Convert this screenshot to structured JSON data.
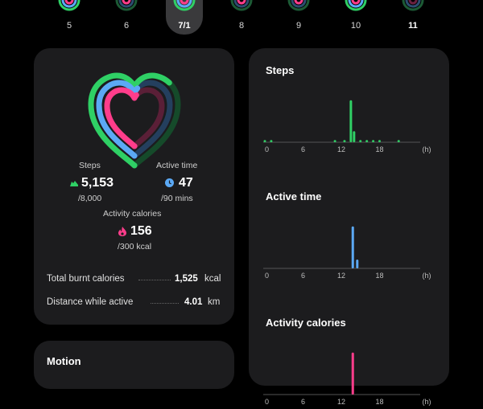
{
  "date_strip": {
    "days": [
      {
        "label": "5",
        "state": "normal"
      },
      {
        "label": "6",
        "state": "normal"
      },
      {
        "label": "7/1",
        "state": "selected"
      },
      {
        "label": "8",
        "state": "normal"
      },
      {
        "label": "9",
        "state": "normal"
      },
      {
        "label": "10",
        "state": "normal"
      },
      {
        "label": "11",
        "state": "bold"
      }
    ]
  },
  "summary": {
    "steps": {
      "label": "Steps",
      "value": "5,153",
      "goal": "/8,000"
    },
    "active_time": {
      "label": "Active time",
      "value": "47",
      "goal": "/90 mins"
    },
    "calories": {
      "label": "Activity calories",
      "value": "156",
      "goal": "/300 kcal"
    },
    "total_burnt": {
      "label": "Total burnt calories",
      "value": "1,525",
      "unit": "kcal"
    },
    "distance": {
      "label": "Distance while active",
      "value": "4.01",
      "unit": "km"
    }
  },
  "progress": {
    "steps": 0.644,
    "active_time": 0.522,
    "calories": 0.52
  },
  "colors": {
    "steps": "#2fd065",
    "active_time": "#5ba9f5",
    "calories": "#ff3d8b",
    "card": "#1c1c1e"
  },
  "charts": {
    "x_ticks": [
      "0",
      "6",
      "12",
      "18"
    ],
    "x_unit": "(h)",
    "steps": {
      "title": "Steps"
    },
    "active_time": {
      "title": "Active time"
    },
    "activity_calories": {
      "title": "Activity calories"
    }
  },
  "chart_data": [
    {
      "type": "bar",
      "title": "Steps",
      "x_unit": "(h)",
      "xlim": [
        0,
        24
      ],
      "x": [
        0,
        1,
        11,
        12.5,
        13.5,
        14,
        15,
        16,
        17,
        18,
        21
      ],
      "values": [
        2,
        2,
        2,
        2,
        38,
        10,
        2,
        2,
        2,
        2,
        2
      ]
    },
    {
      "type": "bar",
      "title": "Active time",
      "x_unit": "(h)",
      "xlim": [
        0,
        24
      ],
      "x": [
        13.8,
        14.5
      ],
      "values": [
        38,
        8
      ]
    },
    {
      "type": "bar",
      "title": "Activity calories",
      "x_unit": "(h)",
      "xlim": [
        0,
        24
      ],
      "x": [
        13.8
      ],
      "values": [
        38
      ]
    }
  ],
  "bottom_card": {
    "title": "Motion"
  }
}
